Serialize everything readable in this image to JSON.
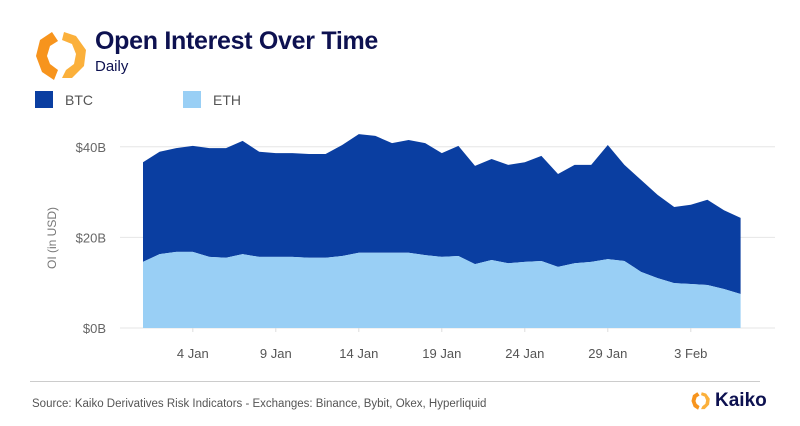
{
  "header": {
    "title": "Open Interest Over Time",
    "subtitle": "Daily"
  },
  "footer": {
    "source": "Source: Kaiko Derivatives Risk Indicators - Exchanges: Binance, Bybit, Okex, Hyperliquid",
    "brand": "Kaiko"
  },
  "colors": {
    "btc": "#0a3ea1",
    "eth": "#99cff5",
    "logo": "#f7941d",
    "title": "#0d1150"
  },
  "chart_data": {
    "type": "area",
    "stacked": true,
    "title": "Open Interest Over Time",
    "subtitle": "Daily",
    "xlabel": "",
    "ylabel": "OI (in USD)",
    "ylim": [
      0,
      45
    ],
    "yticks": [
      0,
      20,
      40
    ],
    "ytick_labels": [
      "$0B",
      "$20B",
      "$40B"
    ],
    "xtick_labels": [
      "4 Jan",
      "9 Jan",
      "14 Jan",
      "19 Jan",
      "24 Jan",
      "29 Jan",
      "3 Feb"
    ],
    "grid": "horizontal",
    "legend": "top-left",
    "categories": [
      "1 Jan",
      "2 Jan",
      "3 Jan",
      "4 Jan",
      "5 Jan",
      "6 Jan",
      "7 Jan",
      "8 Jan",
      "9 Jan",
      "10 Jan",
      "11 Jan",
      "12 Jan",
      "13 Jan",
      "14 Jan",
      "15 Jan",
      "16 Jan",
      "17 Jan",
      "18 Jan",
      "19 Jan",
      "20 Jan",
      "21 Jan",
      "22 Jan",
      "23 Jan",
      "24 Jan",
      "25 Jan",
      "26 Jan",
      "27 Jan",
      "28 Jan",
      "29 Jan",
      "30 Jan",
      "31 Jan",
      "1 Feb",
      "2 Feb",
      "3 Feb",
      "4 Feb",
      "5 Feb",
      "6 Feb"
    ],
    "series": [
      {
        "name": "ETH",
        "values": [
          14.6,
          16.3,
          16.8,
          16.8,
          15.7,
          15.5,
          16.3,
          15.7,
          15.7,
          15.7,
          15.5,
          15.5,
          15.9,
          16.6,
          16.6,
          16.6,
          16.6,
          16.1,
          15.7,
          15.9,
          14.1,
          15.0,
          14.3,
          14.6,
          14.8,
          13.5,
          14.3,
          14.6,
          15.2,
          14.8,
          12.4,
          11.0,
          9.9,
          9.7,
          9.5,
          8.6,
          7.5
        ]
      },
      {
        "name": "BTC",
        "values": [
          22.0,
          22.6,
          22.9,
          23.4,
          24.0,
          24.2,
          25.0,
          23.2,
          22.9,
          22.9,
          22.9,
          22.9,
          24.5,
          26.2,
          25.8,
          24.2,
          24.9,
          24.7,
          22.9,
          24.3,
          21.7,
          22.3,
          21.7,
          22.0,
          23.2,
          20.5,
          21.7,
          21.4,
          25.2,
          21.2,
          20.3,
          18.4,
          16.8,
          17.5,
          18.8,
          17.4,
          16.8
        ]
      }
    ]
  }
}
